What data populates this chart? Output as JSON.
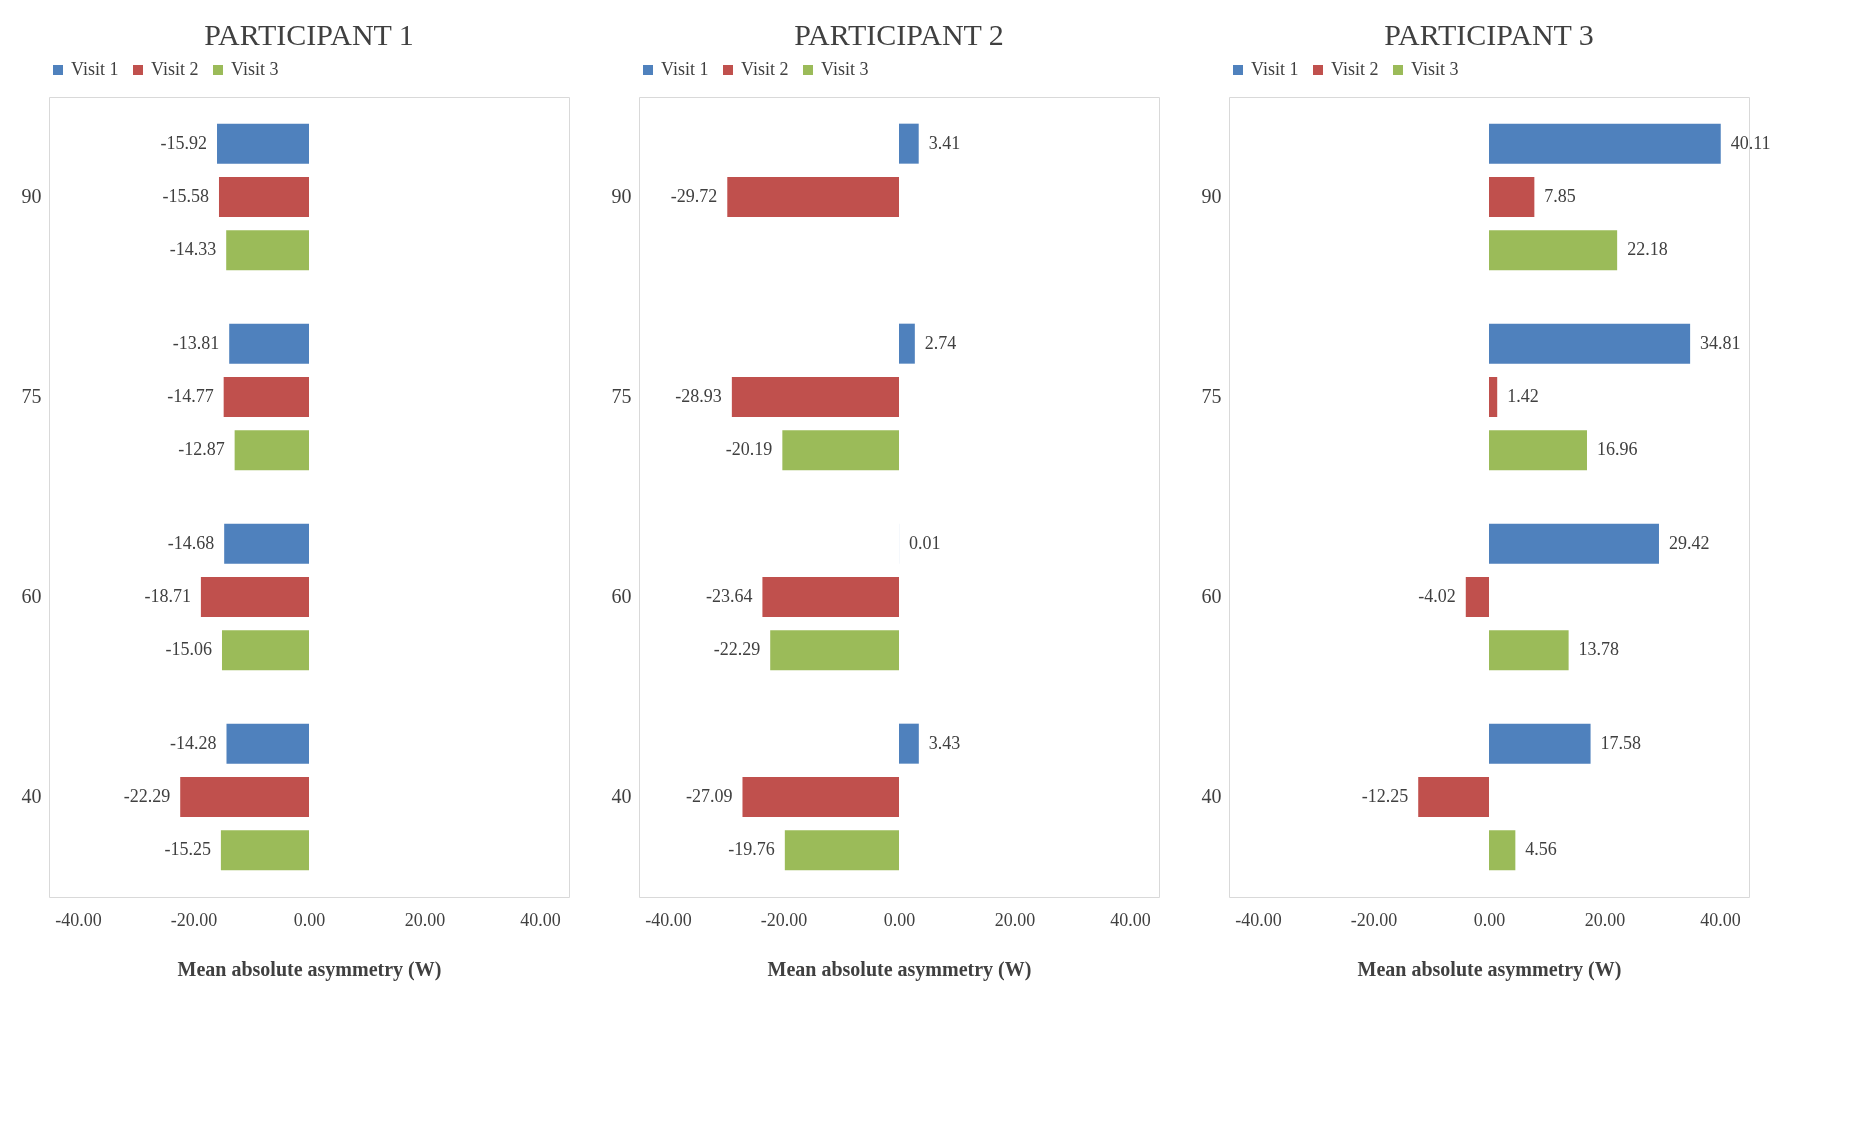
{
  "chart_data": [
    {
      "type": "bar",
      "orientation": "horizontal",
      "title": "PARTICIPANT 1",
      "xlabel": "Mean absolute asymmetry (W)",
      "categories": [
        "90",
        "75",
        "60",
        "40"
      ],
      "series": [
        {
          "name": "Visit 1",
          "color": "#4f81bd",
          "values": [
            -15.92,
            -13.81,
            -14.68,
            -14.28
          ]
        },
        {
          "name": "Visit 2",
          "color": "#c0504d",
          "values": [
            -15.58,
            -14.77,
            -18.71,
            -22.29
          ]
        },
        {
          "name": "Visit 3",
          "color": "#9bbb59",
          "values": [
            -14.33,
            -12.87,
            -15.06,
            -15.25
          ]
        }
      ],
      "xlim": [
        -45,
        45
      ],
      "xticks": [
        {
          "value": -40,
          "label": "-40.00"
        },
        {
          "value": -20,
          "label": "-20.00"
        },
        {
          "value": 0,
          "label": "0.00"
        },
        {
          "value": 20,
          "label": "20.00"
        },
        {
          "value": 40,
          "label": "40.00"
        }
      ],
      "data_labels": true,
      "legend": "top",
      "grid": false
    },
    {
      "type": "bar",
      "orientation": "horizontal",
      "title": "PARTICIPANT 2",
      "xlabel": "Mean absolute asymmetry (W)",
      "categories": [
        "90",
        "75",
        "60",
        "40"
      ],
      "series": [
        {
          "name": "Visit 1",
          "color": "#4f81bd",
          "values": [
            3.41,
            2.74,
            0.01,
            3.43
          ]
        },
        {
          "name": "Visit 2",
          "color": "#c0504d",
          "values": [
            -29.72,
            -28.93,
            -23.64,
            -27.09
          ]
        },
        {
          "name": "Visit 3",
          "color": "#9bbb59",
          "values": [
            null,
            -20.19,
            -22.29,
            -19.76
          ]
        }
      ],
      "xlim": [
        -45,
        45
      ],
      "xticks": [
        {
          "value": -40,
          "label": "-40.00"
        },
        {
          "value": -20,
          "label": "-20.00"
        },
        {
          "value": 0,
          "label": "0.00"
        },
        {
          "value": 20,
          "label": "20.00"
        },
        {
          "value": 40,
          "label": "40.00"
        }
      ],
      "data_labels": true,
      "legend": "top",
      "grid": false
    },
    {
      "type": "bar",
      "orientation": "horizontal",
      "title": "PARTICIPANT 3",
      "xlabel": "Mean absolute asymmetry (W)",
      "categories": [
        "90",
        "75",
        "60",
        "40"
      ],
      "series": [
        {
          "name": "Visit 1",
          "color": "#4f81bd",
          "values": [
            40.11,
            34.81,
            29.42,
            17.58
          ]
        },
        {
          "name": "Visit 2",
          "color": "#c0504d",
          "values": [
            7.85,
            1.42,
            -4.02,
            -12.25
          ]
        },
        {
          "name": "Visit 3",
          "color": "#9bbb59",
          "values": [
            22.18,
            16.96,
            13.78,
            4.56
          ]
        }
      ],
      "xlim": [
        -45,
        45
      ],
      "xticks": [
        {
          "value": -40,
          "label": "-40.00"
        },
        {
          "value": -20,
          "label": "-20.00"
        },
        {
          "value": 0,
          "label": "0.00"
        },
        {
          "value": 20,
          "label": "20.00"
        },
        {
          "value": 40,
          "label": "40.00"
        }
      ],
      "data_labels": true,
      "legend": "top",
      "grid": false
    }
  ]
}
